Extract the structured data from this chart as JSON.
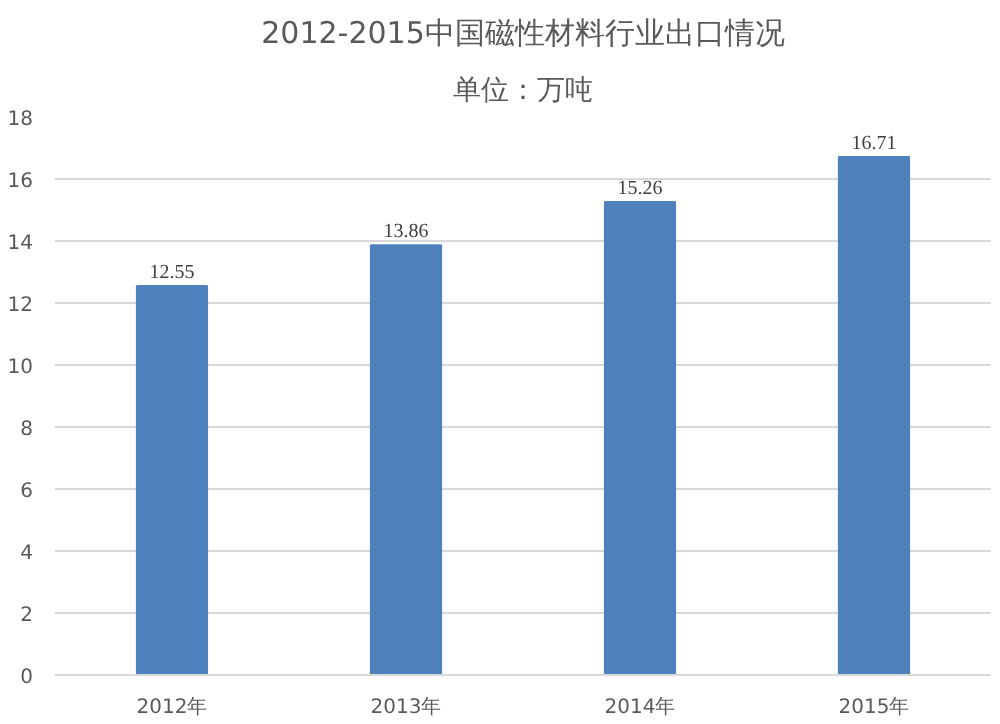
{
  "chart_data": {
    "type": "bar",
    "title": "2012-2015中国磁性材料行业出口情况",
    "subtitle": "单位：万吨",
    "categories": [
      "2012年",
      "2013年",
      "2014年",
      "2015年"
    ],
    "values": [
      12.55,
      13.86,
      15.26,
      16.71
    ],
    "color": "#4f81bd",
    "ylim": [
      0,
      18
    ],
    "yticks": [
      0,
      2,
      4,
      6,
      8,
      10,
      12,
      14,
      16,
      18
    ],
    "grid": "y",
    "data_labels": true
  }
}
